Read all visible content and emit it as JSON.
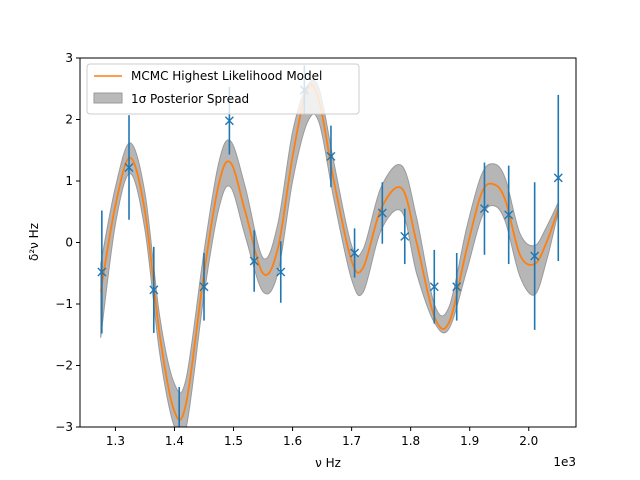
{
  "chart_data": {
    "type": "line",
    "xlabel": "ν Hz",
    "ylabel": "δ²ν Hz",
    "x_offset_label": "1e3",
    "xlim": [
      1.24,
      2.08
    ],
    "ylim": [
      -3,
      3
    ],
    "xticks": [
      1.3,
      1.4,
      1.5,
      1.6,
      1.7,
      1.8,
      1.9,
      2.0
    ],
    "xtick_labels": [
      "1.3",
      "1.4",
      "1.5",
      "1.6",
      "1.7",
      "1.8",
      "1.9",
      "2.0"
    ],
    "yticks": [
      -3,
      -2,
      -1,
      0,
      1,
      2,
      3
    ],
    "ytick_labels": [
      "−3",
      "−2",
      "−1",
      "0",
      "1",
      "2",
      "3"
    ],
    "grid": false,
    "legend_position": "top-left",
    "colors": {
      "model": "#ff7f0e",
      "band": "#a9a9a9",
      "data": "#1f77b4"
    },
    "legend": [
      {
        "label": "MCMC Highest Likelihood Model",
        "kind": "line"
      },
      {
        "label": "1σ Posterior Spread",
        "kind": "band"
      }
    ],
    "model": {
      "name": "MCMC Highest Likelihood Model",
      "x": [
        1.275,
        1.3,
        1.325,
        1.35,
        1.375,
        1.4,
        1.42,
        1.45,
        1.475,
        1.495,
        1.52,
        1.55,
        1.575,
        1.6,
        1.625,
        1.645,
        1.67,
        1.7,
        1.72,
        1.75,
        1.785,
        1.81,
        1.84,
        1.865,
        1.895,
        1.92,
        1.94,
        1.96,
        1.985,
        2.01,
        2.03,
        2.05
      ],
      "y": [
        -0.8,
        0.6,
        1.38,
        0.5,
        -1.5,
        -2.75,
        -2.6,
        -0.5,
        0.95,
        1.3,
        0.5,
        -0.5,
        -0.1,
        1.4,
        2.5,
        2.3,
        1.0,
        -0.3,
        -0.4,
        0.55,
        0.88,
        0.0,
        -1.2,
        -1.3,
        -0.1,
        0.8,
        0.95,
        0.7,
        -0.2,
        -0.35,
        0.0,
        0.55
      ]
    },
    "band": {
      "name": "1σ Posterior Spread",
      "x": [
        1.275,
        1.3,
        1.325,
        1.35,
        1.375,
        1.4,
        1.42,
        1.45,
        1.475,
        1.495,
        1.52,
        1.55,
        1.575,
        1.6,
        1.625,
        1.645,
        1.67,
        1.7,
        1.72,
        1.75,
        1.785,
        1.81,
        1.84,
        1.865,
        1.895,
        1.92,
        1.94,
        1.96,
        1.985,
        2.01,
        2.03,
        2.05
      ],
      "upper": [
        -0.35,
        0.9,
        1.62,
        0.8,
        -1.2,
        -2.3,
        -2.2,
        -0.15,
        1.3,
        1.65,
        0.9,
        -0.25,
        0.3,
        1.8,
        2.55,
        2.5,
        1.3,
        -0.05,
        -0.1,
        0.9,
        1.25,
        0.4,
        -1.0,
        -1.05,
        0.25,
        1.1,
        1.28,
        1.05,
        0.15,
        -0.05,
        0.25,
        0.65
      ],
      "lower": [
        -1.55,
        0.3,
        1.12,
        0.2,
        -1.8,
        -3.0,
        -3.0,
        -0.85,
        0.55,
        0.9,
        0.1,
        -0.8,
        -0.5,
        1.0,
        1.95,
        1.95,
        0.7,
        -0.6,
        -0.8,
        0.2,
        0.5,
        -0.5,
        -1.3,
        -1.4,
        -0.45,
        0.4,
        0.6,
        0.35,
        -0.55,
        -0.85,
        -0.3,
        0.5
      ]
    },
    "points": {
      "x": [
        1.277,
        1.323,
        1.365,
        1.408,
        1.45,
        1.493,
        1.535,
        1.58,
        1.62,
        1.665,
        1.705,
        1.752,
        1.79,
        1.84,
        1.878,
        1.925,
        1.966,
        2.01,
        2.05
      ],
      "y": [
        -0.48,
        1.22,
        -0.77,
        -3.15,
        -0.72,
        1.98,
        -0.3,
        -0.48,
        2.48,
        1.4,
        -0.17,
        0.48,
        0.1,
        -0.72,
        -0.72,
        0.55,
        0.45,
        -0.22,
        1.05
      ],
      "err": [
        1.0,
        0.85,
        0.7,
        0.8,
        0.55,
        0.55,
        0.5,
        0.5,
        0.4,
        0.5,
        0.4,
        0.5,
        0.45,
        0.6,
        0.55,
        0.75,
        0.8,
        1.2,
        1.35
      ]
    }
  }
}
